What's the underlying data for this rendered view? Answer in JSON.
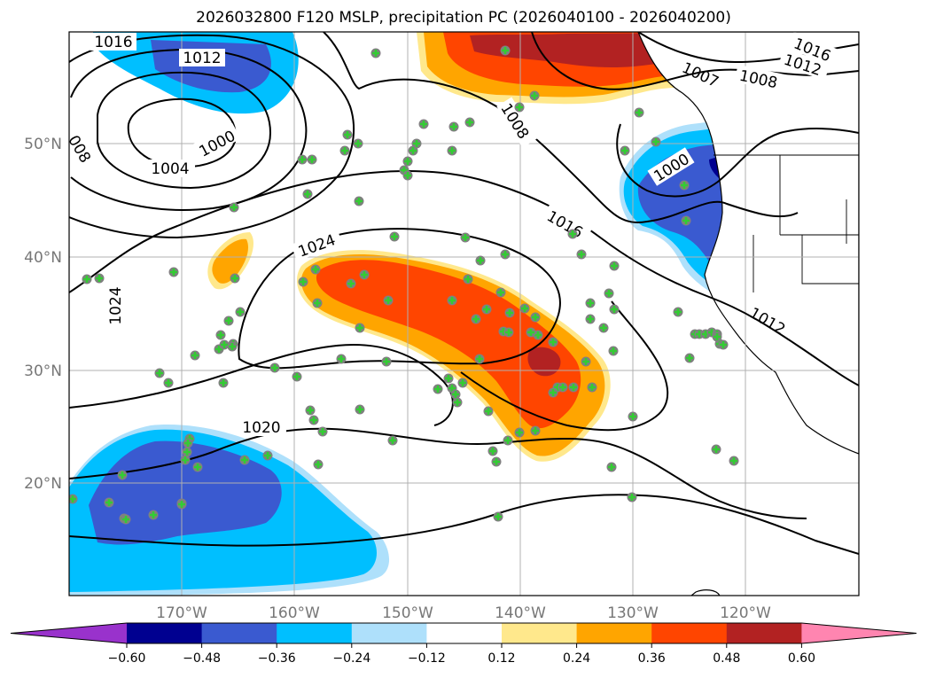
{
  "title": "2026032800 F120 MSLP, precipitation PC (2026040100 - 2026040200)",
  "map": {
    "lon_labels": [
      "170°W",
      "160°W",
      "150°W",
      "140°W",
      "130°W",
      "120°W"
    ],
    "lat_labels": [
      "50°N",
      "40°N",
      "30°N",
      "20°N"
    ],
    "grid": true,
    "colors": {
      "land": "#ffffff",
      "coast": "#000000",
      "grid": "#b0b0b0",
      "station_circle": "#808080",
      "station_cross": "#33cc33"
    }
  },
  "isobars": {
    "labels": [
      "1016",
      "1012",
      "1000",
      "1004",
      "008",
      "1008",
      "1016",
      "1024",
      "1024",
      "1020",
      "1016",
      "1012",
      "1008",
      "1007",
      "1000",
      "1012"
    ]
  },
  "colorbar": {
    "ticks": [
      "−0.60",
      "−0.48",
      "−0.36",
      "−0.24",
      "−0.12",
      "0.12",
      "0.24",
      "0.36",
      "0.48",
      "0.60"
    ],
    "colors": [
      "#9932cc",
      "#000090",
      "#3a5ad0",
      "#00bfff",
      "#aee0fb",
      "#ffffff",
      "#ffe88c",
      "#ffa500",
      "#ff4500",
      "#b22222",
      "#ff85b0"
    ],
    "extend": "both"
  }
}
